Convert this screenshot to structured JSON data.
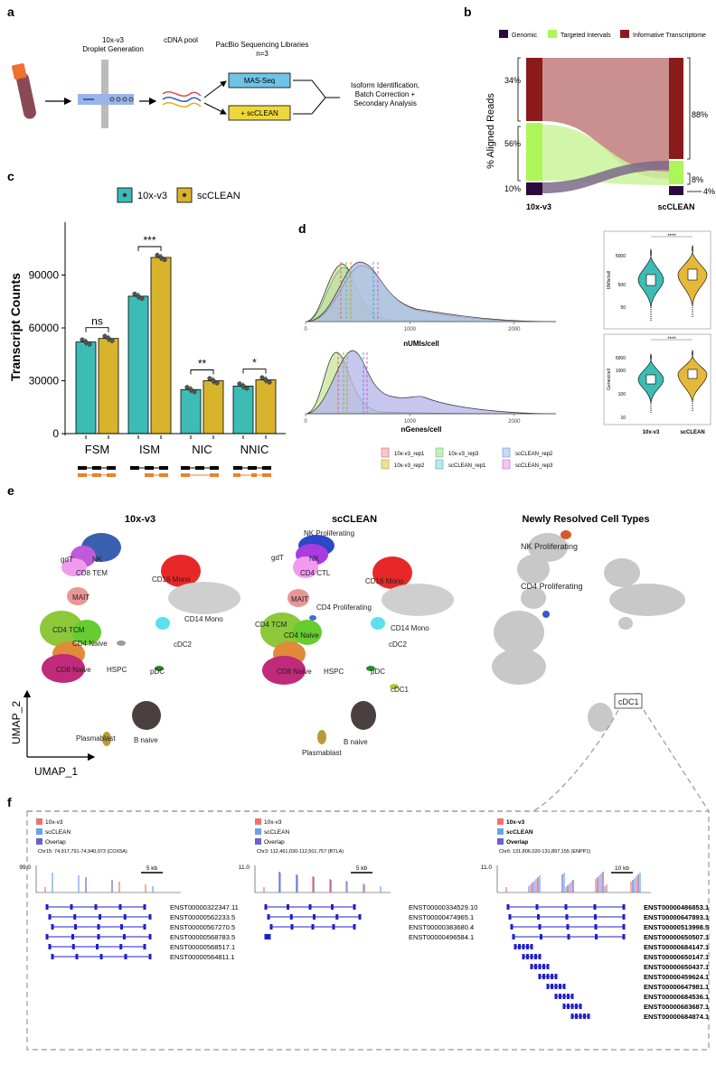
{
  "panel_letters": {
    "a": "a",
    "b": "b",
    "c": "c",
    "d": "d",
    "e": "e",
    "f": "f"
  },
  "panel_a": {
    "droplet_line1": "10x-v3",
    "droplet_line2": "Droplet Generation",
    "cdna": "cDNA pool",
    "pacbio_line1": "PacBio Sequencing Libraries",
    "pacbio_line2": "n=3",
    "masseq": "MAS-Seq",
    "scclean": "+ scCLEAN",
    "iso_line1": "Isoform Identification,",
    "iso_line2": "Batch Correction +",
    "iso_line3": "Secondary Analysis"
  },
  "panel_b": {
    "legend": [
      "Genomic",
      "Targeted Intervals",
      "Informative Transcriptome"
    ],
    "colors": [
      "#2b0a3d",
      "#aef55a",
      "#8b1a1a"
    ],
    "ylabel": "% Aligned Reads",
    "left_label": "10x-v3",
    "right_label": "scCLEAN",
    "left_pcts": [
      "34%",
      "56%",
      "10%"
    ],
    "right_pcts": [
      "88%",
      "8%",
      "4%"
    ]
  },
  "chart_data": [
    {
      "type": "bar",
      "panel": "c",
      "legend": [
        "10x-v3",
        "scCLEAN"
      ],
      "colors": [
        "#3cbcb4",
        "#d8b42c"
      ],
      "categories": [
        "FSM",
        "ISM",
        "NIC",
        "NNIC"
      ],
      "series": [
        {
          "name": "10x-v3",
          "values": [
            52000,
            78000,
            25000,
            27000
          ]
        },
        {
          "name": "scCLEAN",
          "values": [
            54000,
            100000,
            30000,
            30500
          ]
        }
      ],
      "ylabel": "Transcript Counts",
      "yticks": [
        "0",
        "30000",
        "60000",
        "90000"
      ],
      "ylim": [
        0,
        120000
      ],
      "significance": [
        "ns",
        "***",
        "**",
        "*"
      ]
    },
    {
      "type": "area",
      "panel": "d",
      "top_xlabel": "nUMIs/cell",
      "bottom_xlabel": "nGenes/cell",
      "xticks": [
        "0",
        "1000",
        "2000"
      ],
      "legend": [
        "10x-v3_rep1",
        "10x-v3_rep2",
        "10x-v3_rep3",
        "scCLEAN_rep1",
        "scCLEAN_rep2",
        "scCLEAN_rep3"
      ],
      "violin_top_ylabel": "UMIs/cell",
      "violin_top_ticks": [
        "5000",
        "500",
        "50"
      ],
      "violin_bottom_ylabel": "Genes/cell",
      "violin_bottom_ticks": [
        "5000",
        "1000",
        "100",
        "10"
      ],
      "violin_xlabels": [
        "10x-v3",
        "scCLEAN"
      ],
      "violin_sig": "****"
    }
  ],
  "panel_e": {
    "titles": [
      "10x-v3",
      "scCLEAN",
      "Newly Resolved Cell Types"
    ],
    "umap1": "UMAP_1",
    "umap2": "UMAP_2",
    "labels_10x": [
      "NK",
      "gdT",
      "CD8 TEM",
      "MAIT",
      "CD16 Mono",
      "CD14 Mono",
      "CD4 TCM",
      "CD4 Naive",
      "CD8 Naive",
      "HSPC",
      "cDC2",
      "pDC",
      "B naive",
      "Plasmablast"
    ],
    "labels_sc": [
      "NK Proliferating",
      "NK",
      "gdT",
      "CD4 CTL",
      "CD16 Mono",
      "MAIT",
      "CD4 Proliferating",
      "CD4 TCM",
      "CD14 Mono",
      "CD4 Naive",
      "cDC2",
      "CD8 Naive",
      "HSPC",
      "pDC",
      "cDC1",
      "B naive",
      "Plasmablast"
    ],
    "labels_new": [
      "NK Proliferating",
      "CD4 Proliferating",
      "cDC1"
    ]
  },
  "panel_f": {
    "legend": [
      "10x-v3",
      "scCLEAN",
      "Overlap"
    ],
    "tracks": [
      {
        "scale": "99.0",
        "locus": "Chr15: 74,917,791-74,940,073 (COX5A)",
        "kb": "5 kb",
        "transcripts": [
          "ENST00000322347.11",
          "ENST00000562233.5",
          "ENST00000567270.5",
          "ENST00000568783.5",
          "ENST00000568517.1",
          "ENST00000564811.1"
        ]
      },
      {
        "scale": "11.0",
        "locus": "Chr3: 112,461,030-112,501,757 (BTLA)",
        "kb": "5 kb",
        "transcripts": [
          "ENST00000334529.10",
          "ENST00000474965.1",
          "ENST00000383680.4",
          "ENST00000496584.1"
        ]
      },
      {
        "scale": "11.0",
        "locus": "Chr6: 131,806,020-131,897,155 (ENPP1)",
        "kb": "10 kb",
        "transcripts": [
          "ENST00000486853.1",
          "ENST00000647893.1",
          "ENST00000513998.5",
          "ENST00000650507.1",
          "ENST00000684147.1",
          "ENST00000650147.1",
          "ENST00000650437.1",
          "ENST00000459624.1",
          "ENST00000647981.1",
          "ENST00000684536.1",
          "ENST00000683687.1",
          "ENST00000684874.1"
        ]
      }
    ]
  }
}
